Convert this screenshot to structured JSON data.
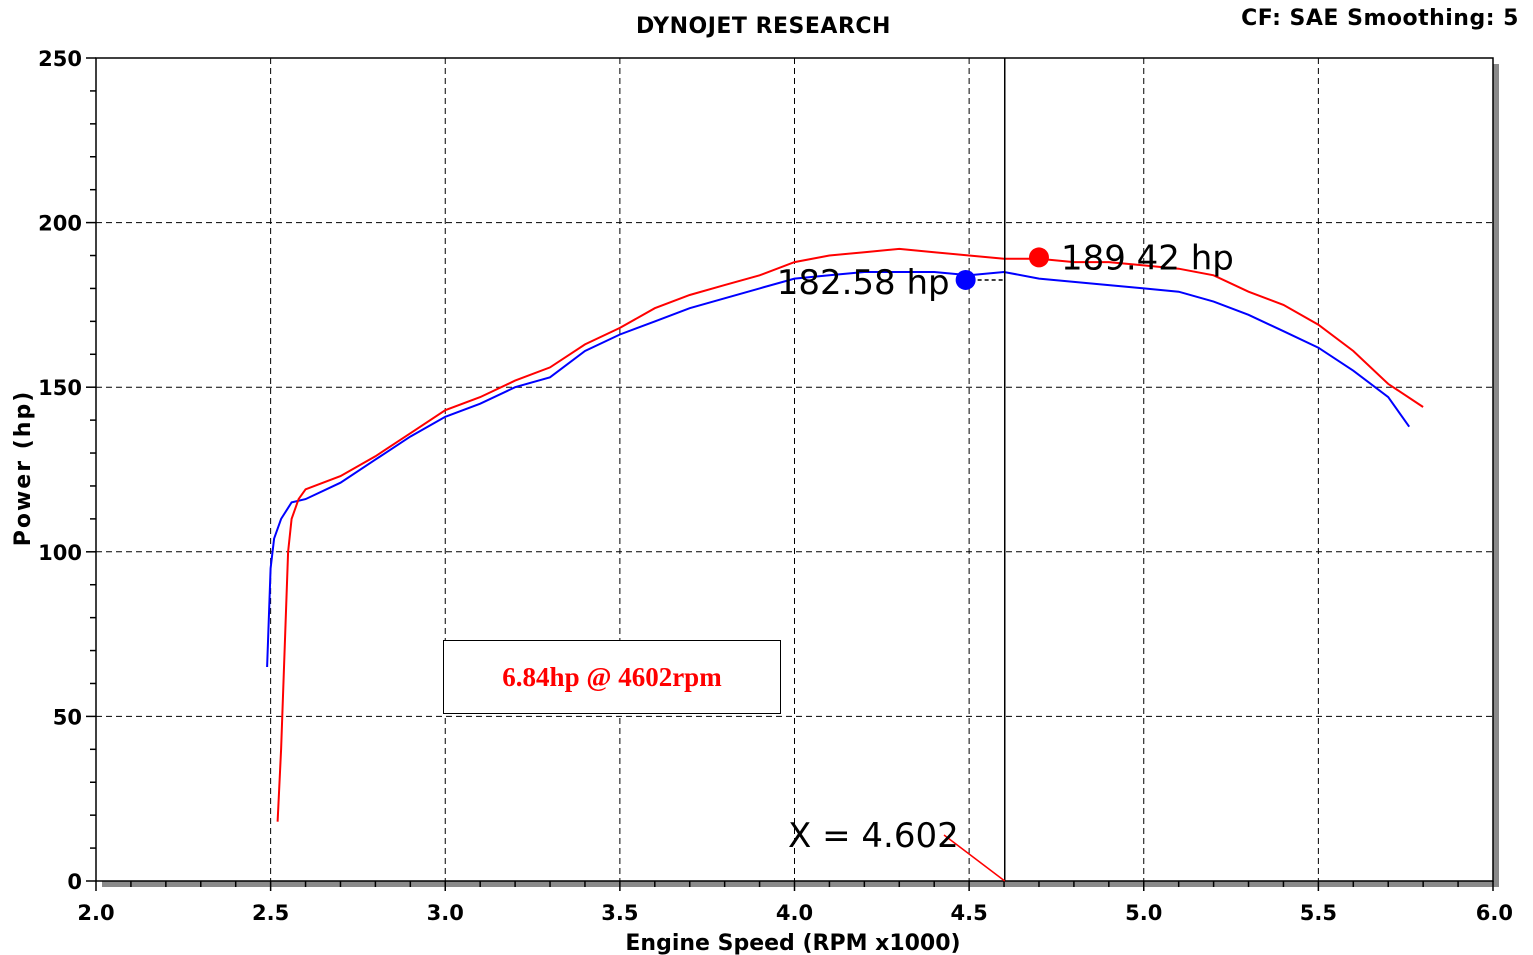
{
  "header": {
    "title": "DYNOJET RESEARCH",
    "cf_label": "CF: SAE",
    "smoothing_label": "Smoothing: 5"
  },
  "annotation_box": {
    "text": "6.84hp @ 4602rpm",
    "color": "#ff0000"
  },
  "chart_data": {
    "type": "line",
    "title": "DYNOJET RESEARCH",
    "xlabel": "Engine Speed (RPM x1000)",
    "ylabel": "Power (hp)",
    "xlim": [
      2.0,
      6.0
    ],
    "ylim": [
      0,
      250
    ],
    "x_ticks": [
      "2.0",
      "2.5",
      "3.0",
      "3.5",
      "4.0",
      "4.5",
      "5.0",
      "5.5",
      "6.0"
    ],
    "y_ticks": [
      "0",
      "50",
      "100",
      "150",
      "200",
      "250"
    ],
    "grid": true,
    "cursor": {
      "x": 4.602,
      "label": "X = 4.602"
    },
    "series": [
      {
        "color": "#0000ff",
        "peak": {
          "x": 4.49,
          "y": 182.58,
          "label": "182.58 hp"
        },
        "points": [
          [
            2.49,
            65
          ],
          [
            2.5,
            95
          ],
          [
            2.51,
            104
          ],
          [
            2.53,
            110
          ],
          [
            2.56,
            115
          ],
          [
            2.6,
            116
          ],
          [
            2.7,
            121
          ],
          [
            2.8,
            128
          ],
          [
            2.9,
            135
          ],
          [
            3.0,
            141
          ],
          [
            3.1,
            145
          ],
          [
            3.2,
            150
          ],
          [
            3.3,
            153
          ],
          [
            3.4,
            161
          ],
          [
            3.5,
            166
          ],
          [
            3.6,
            170
          ],
          [
            3.7,
            174
          ],
          [
            3.8,
            177
          ],
          [
            3.9,
            180
          ],
          [
            4.0,
            183
          ],
          [
            4.1,
            184
          ],
          [
            4.2,
            185
          ],
          [
            4.3,
            185
          ],
          [
            4.4,
            185
          ],
          [
            4.5,
            184
          ],
          [
            4.6,
            185
          ],
          [
            4.7,
            183
          ],
          [
            4.8,
            182
          ],
          [
            4.9,
            181
          ],
          [
            5.0,
            180
          ],
          [
            5.1,
            179
          ],
          [
            5.2,
            176
          ],
          [
            5.3,
            172
          ],
          [
            5.4,
            167
          ],
          [
            5.5,
            162
          ],
          [
            5.6,
            155
          ],
          [
            5.7,
            147
          ],
          [
            5.76,
            138
          ]
        ]
      },
      {
        "color": "#ff0000",
        "peak": {
          "x": 4.7,
          "y": 189.42,
          "label": "189.42 hp"
        },
        "points": [
          [
            2.52,
            18
          ],
          [
            2.53,
            40
          ],
          [
            2.54,
            70
          ],
          [
            2.55,
            100
          ],
          [
            2.56,
            110
          ],
          [
            2.58,
            116
          ],
          [
            2.6,
            119
          ],
          [
            2.7,
            123
          ],
          [
            2.8,
            129
          ],
          [
            2.9,
            136
          ],
          [
            3.0,
            143
          ],
          [
            3.1,
            147
          ],
          [
            3.2,
            152
          ],
          [
            3.3,
            156
          ],
          [
            3.4,
            163
          ],
          [
            3.5,
            168
          ],
          [
            3.6,
            174
          ],
          [
            3.7,
            178
          ],
          [
            3.8,
            181
          ],
          [
            3.9,
            184
          ],
          [
            4.0,
            188
          ],
          [
            4.1,
            190
          ],
          [
            4.2,
            191
          ],
          [
            4.3,
            192
          ],
          [
            4.4,
            191
          ],
          [
            4.5,
            190
          ],
          [
            4.6,
            189
          ],
          [
            4.7,
            189
          ],
          [
            4.8,
            188
          ],
          [
            4.9,
            188
          ],
          [
            5.0,
            187
          ],
          [
            5.1,
            186
          ],
          [
            5.2,
            184
          ],
          [
            5.3,
            179
          ],
          [
            5.4,
            175
          ],
          [
            5.5,
            169
          ],
          [
            5.6,
            161
          ],
          [
            5.7,
            151
          ],
          [
            5.8,
            144
          ]
        ]
      }
    ]
  }
}
